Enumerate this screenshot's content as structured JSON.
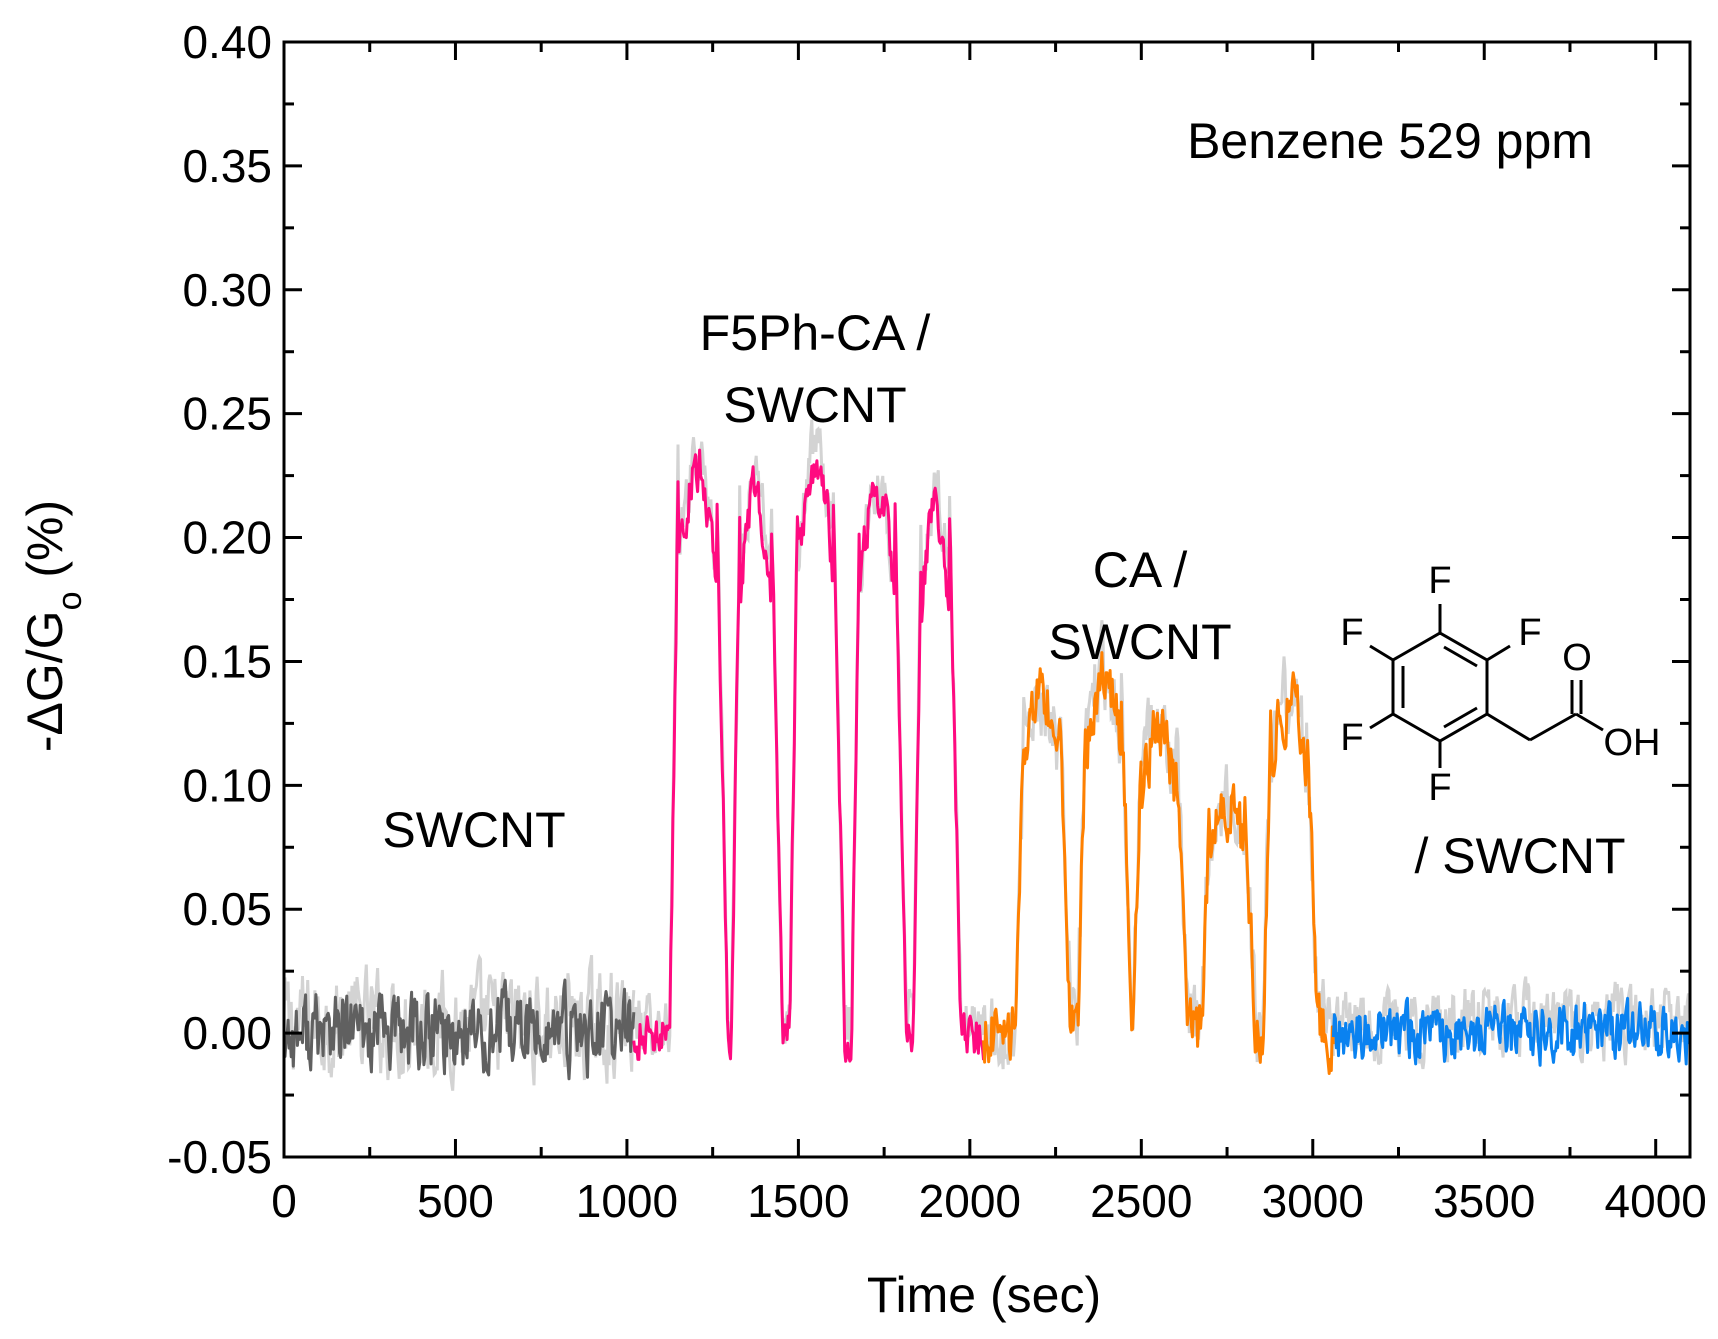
{
  "chart_data": {
    "type": "line",
    "title": "",
    "xlabel": "Time (sec)",
    "ylabel_parts": [
      "-ΔG/G",
      "o",
      " (%)"
    ],
    "xlim": [
      0,
      4100
    ],
    "ylim": [
      -0.05,
      0.4
    ],
    "x_ticks": [
      0,
      500,
      1000,
      1500,
      2000,
      2500,
      3000,
      3500,
      4000
    ],
    "x_tick_labels": [
      "0",
      "500",
      "1000",
      "1500",
      "2000",
      "2500",
      "3000",
      "3500",
      "4000"
    ],
    "y_ticks": [
      -0.05,
      0.0,
      0.05,
      0.1,
      0.15,
      0.2,
      0.25,
      0.3,
      0.35,
      0.4
    ],
    "y_tick_labels": [
      "-0.05",
      "0.00",
      "0.05",
      "0.10",
      "0.15",
      "0.20",
      "0.25",
      "0.30",
      "0.35",
      "0.40"
    ],
    "annotation": "Benzene 529 ppm",
    "series": [
      {
        "name": "SWCNT",
        "label_lines": [
          "SWCNT"
        ],
        "color": "#606060",
        "x_range": [
          0,
          1020
        ],
        "baseline": 0.0,
        "noise": 0.025,
        "pulses": []
      },
      {
        "name": "F5Ph-CA / SWCNT",
        "label_lines": [
          "F5Ph-CA /",
          "SWCNT"
        ],
        "color": "#ff0a80",
        "x_range": [
          1020,
          2040
        ],
        "baseline": 0.0,
        "noise": 0.015,
        "pulses": [
          {
            "start": 1150,
            "end": 1260,
            "peak": 0.228
          },
          {
            "start": 1330,
            "end": 1420,
            "peak": 0.218
          },
          {
            "start": 1500,
            "end": 1600,
            "peak": 0.232
          },
          {
            "start": 1680,
            "end": 1780,
            "peak": 0.22
          },
          {
            "start": 1860,
            "end": 1940,
            "peak": 0.212
          }
        ]
      },
      {
        "name": "CA / SWCNT",
        "label_lines": [
          "CA /",
          "SWCNT"
        ],
        "color": "#ff8000",
        "x_range": [
          2040,
          3060
        ],
        "baseline": 0.0,
        "noise": 0.02,
        "pulses": [
          {
            "start": 2160,
            "end": 2260,
            "peak": 0.133
          },
          {
            "start": 2340,
            "end": 2440,
            "peak": 0.143
          },
          {
            "start": 2500,
            "end": 2600,
            "peak": 0.12
          },
          {
            "start": 2700,
            "end": 2800,
            "peak": 0.09
          },
          {
            "start": 2880,
            "end": 2980,
            "peak": 0.133
          }
        ]
      },
      {
        "name": "/ SWCNT",
        "label_lines": [
          "/ SWCNT"
        ],
        "color": "#0a82f0",
        "x_range": [
          3060,
          4100
        ],
        "baseline": 0.0,
        "noise": 0.018,
        "pulses": []
      }
    ],
    "reference_color": "#d3d3d3",
    "molecule_labels": {
      "f_top": "F",
      "f_upper_left": "F",
      "f_upper_right": "F",
      "f_lower_left": "F",
      "f_bottom": "F",
      "o": "O",
      "oh": "OH"
    }
  }
}
